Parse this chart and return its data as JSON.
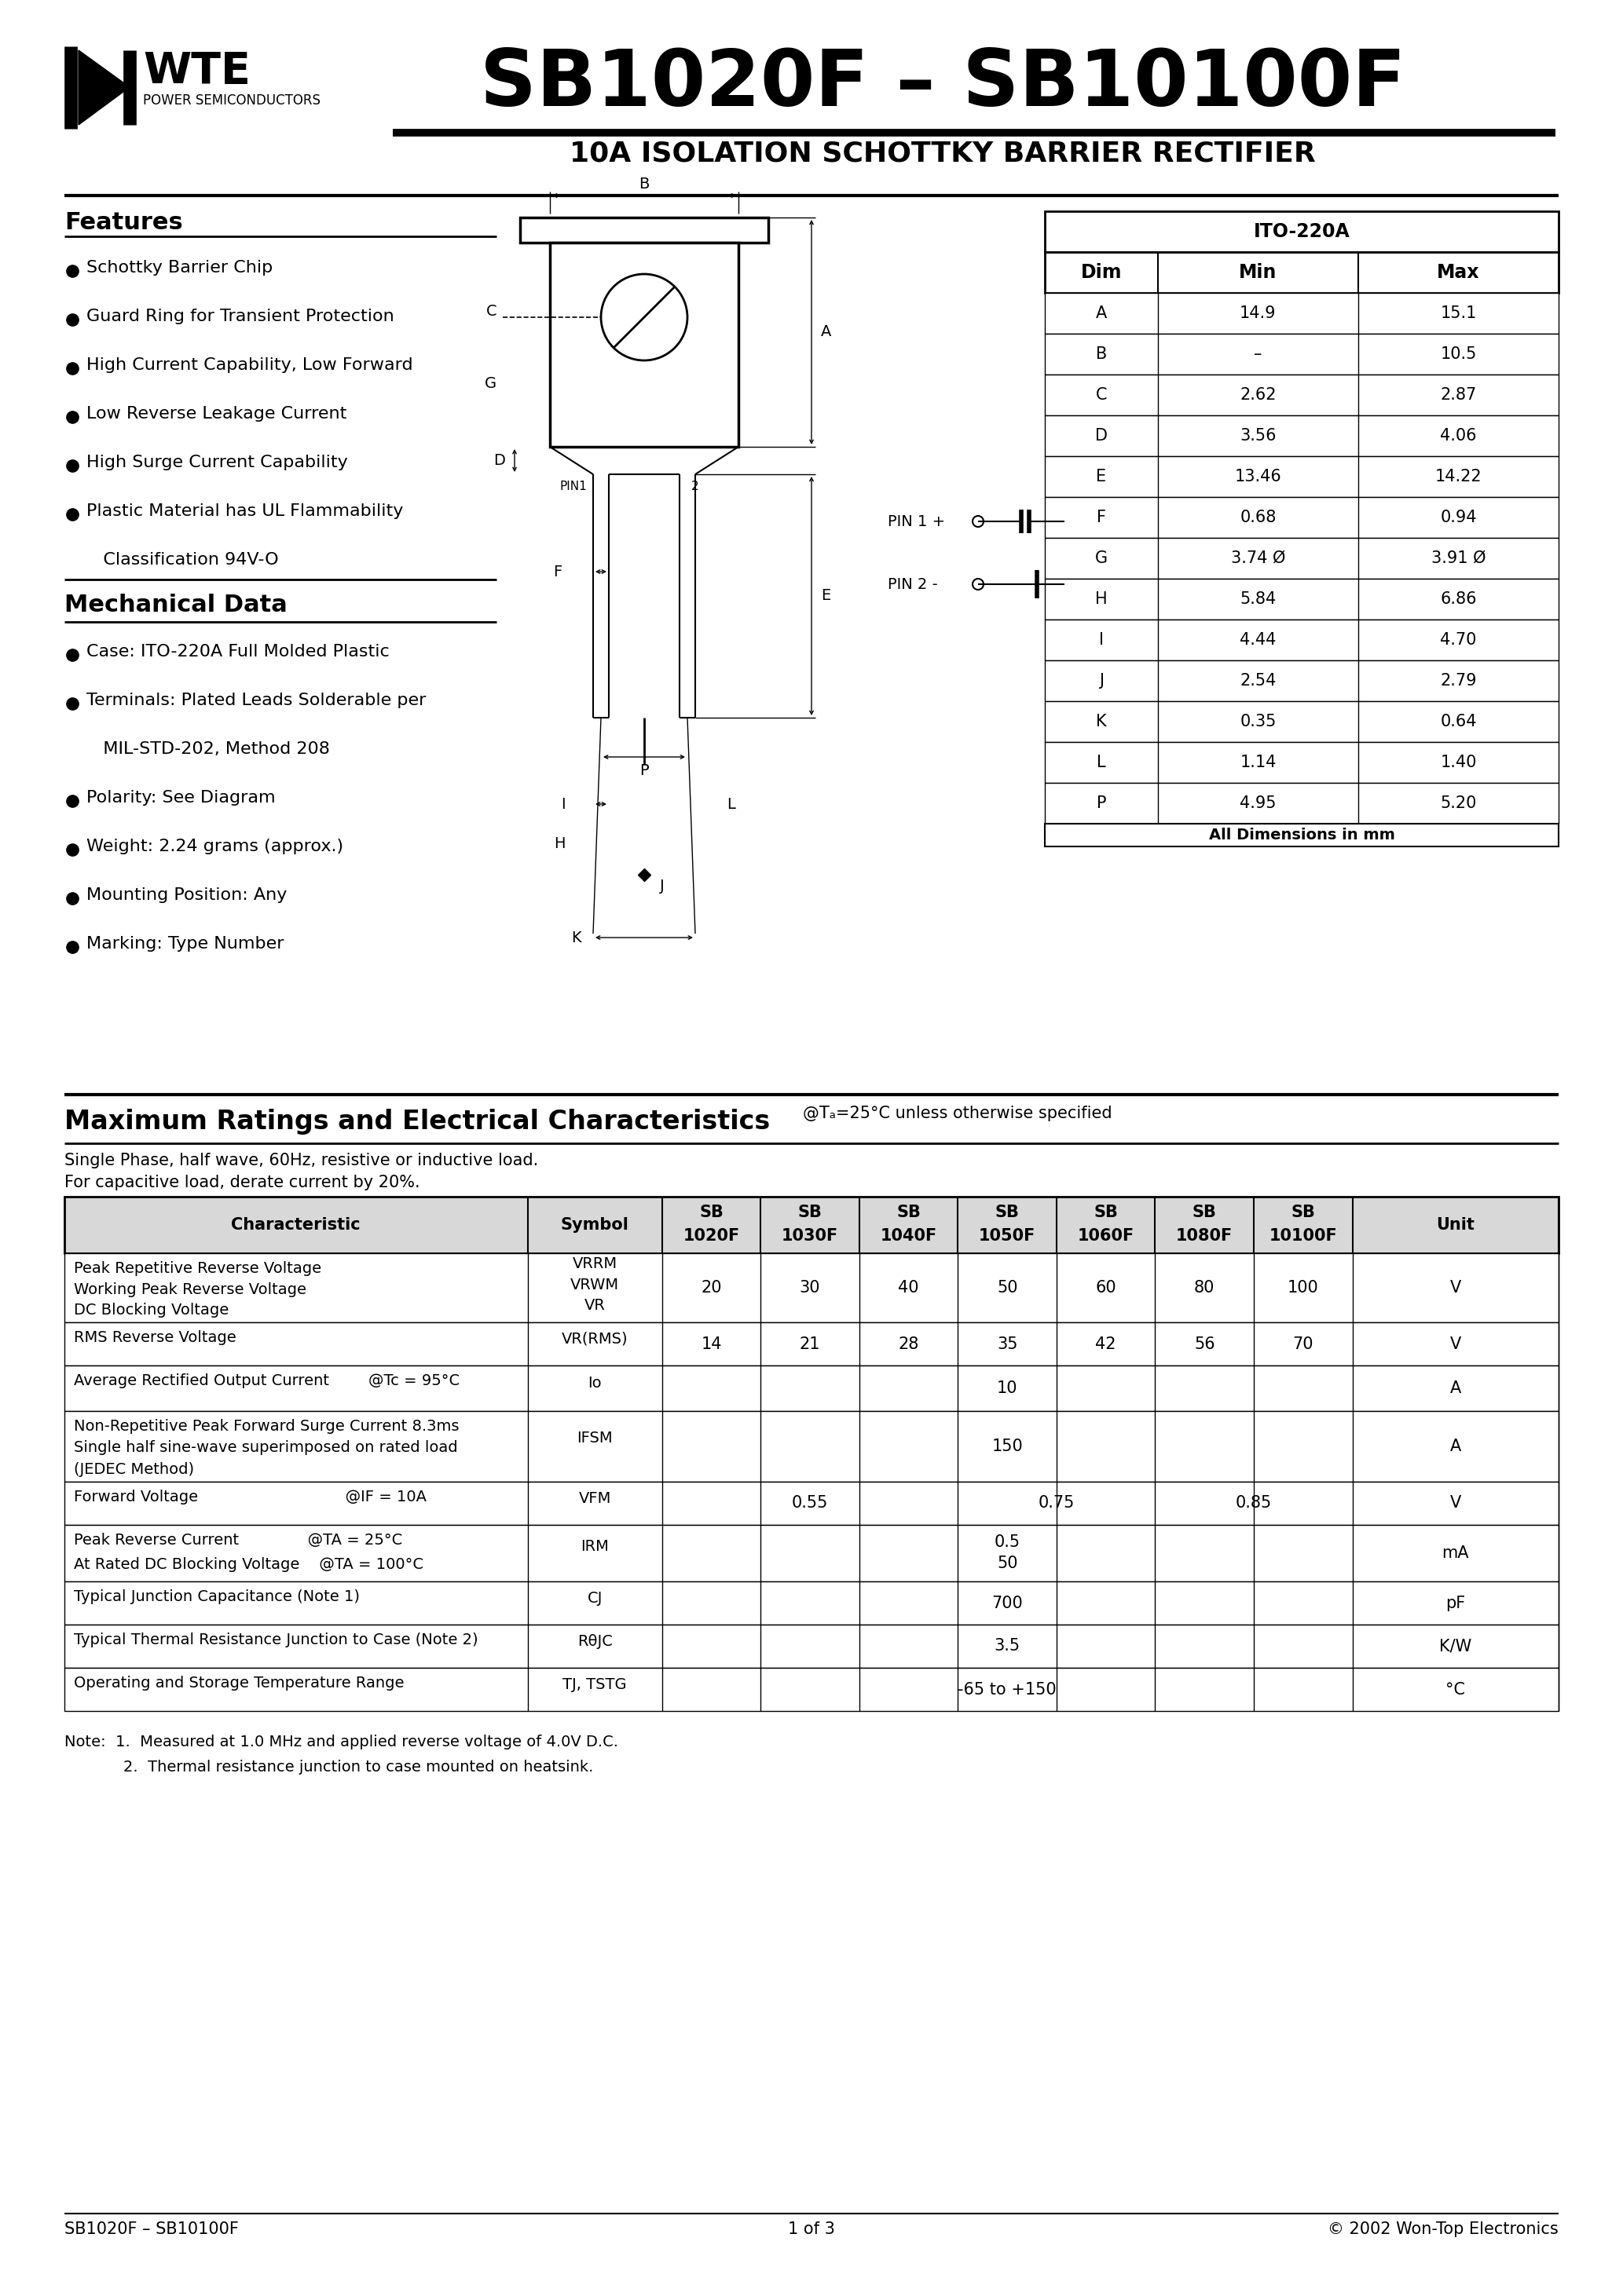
{
  "title": "SB1020F – SB10100F",
  "subtitle": "10A ISOLATION SCHOTTKY BARRIER RECTIFIER",
  "company": "WTE",
  "company_sub": "POWER SEMICONDUCTORS",
  "features_title": "Features",
  "mech_title": "Mechanical Data",
  "dim_table_title": "ITO-220A",
  "dim_headers": [
    "Dim",
    "Min",
    "Max"
  ],
  "dim_rows": [
    [
      "A",
      "14.9",
      "15.1"
    ],
    [
      "B",
      "–",
      "10.5"
    ],
    [
      "C",
      "2.62",
      "2.87"
    ],
    [
      "D",
      "3.56",
      "4.06"
    ],
    [
      "E",
      "13.46",
      "14.22"
    ],
    [
      "F",
      "0.68",
      "0.94"
    ],
    [
      "G",
      "3.74 Ø",
      "3.91 Ø"
    ],
    [
      "H",
      "5.84",
      "6.86"
    ],
    [
      "I",
      "4.44",
      "4.70"
    ],
    [
      "J",
      "2.54",
      "2.79"
    ],
    [
      "K",
      "0.35",
      "0.64"
    ],
    [
      "L",
      "1.14",
      "1.40"
    ],
    [
      "P",
      "4.95",
      "5.20"
    ]
  ],
  "dim_footer": "All Dimensions in mm",
  "ratings_title": "Maximum Ratings and Electrical Characteristics",
  "ratings_subtitle": "@Tₐ=25°C unless otherwise specified",
  "ratings_note1": "Single Phase, half wave, 60Hz, resistive or inductive load.",
  "ratings_note2": "For capacitive load, derate current by 20%.",
  "notes": [
    "Note:  1.  Measured at 1.0 MHz and applied reverse voltage of 4.0V D.C.",
    "            2.  Thermal resistance junction to case mounted on heatsink."
  ],
  "footer_left": "SB1020F – SB10100F",
  "footer_center": "1 of 3",
  "footer_right": "© 2002 Won-Top Electronics",
  "bg_color": "#ffffff"
}
